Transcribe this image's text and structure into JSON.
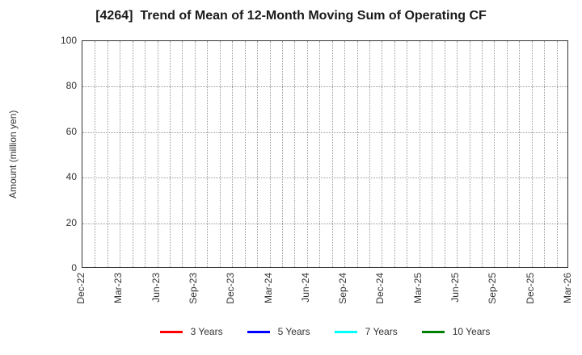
{
  "chart_data": {
    "type": "line",
    "title": "[4264]  Trend of Mean of 12-Month Moving Sum of Operating CF",
    "ylabel": "Amount (million yen)",
    "ylim": [
      0,
      100
    ],
    "yticks": [
      0,
      20,
      40,
      60,
      80,
      100
    ],
    "x_months_total": 40,
    "xtick_every_months": 3,
    "xtick_labels": [
      "Dec-22",
      "Mar-23",
      "Jun-23",
      "Sep-23",
      "Dec-23",
      "Mar-24",
      "Jun-24",
      "Sep-24",
      "Dec-24",
      "Mar-25",
      "Jun-25",
      "Sep-25",
      "Dec-25",
      "Mar-26"
    ],
    "grid": true,
    "legend_position": "bottom",
    "series": [
      {
        "name": "3 Years",
        "color": "#ff0000",
        "values": []
      },
      {
        "name": "5 Years",
        "color": "#0000ff",
        "values": []
      },
      {
        "name": "7 Years",
        "color": "#00ffff",
        "values": []
      },
      {
        "name": "10 Years",
        "color": "#008000",
        "values": []
      }
    ]
  },
  "style": {
    "grid_color": "#9a9a9a",
    "axis_color": "#333333",
    "text_color": "#333333",
    "title_color": "#1a1a1a",
    "background": "#ffffff"
  }
}
